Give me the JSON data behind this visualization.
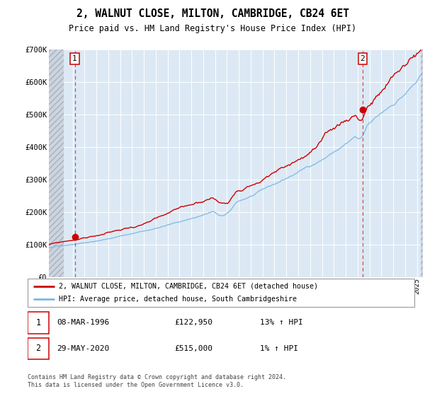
{
  "title": "2, WALNUT CLOSE, MILTON, CAMBRIDGE, CB24 6ET",
  "subtitle": "Price paid vs. HM Land Registry's House Price Index (HPI)",
  "legend_line1": "2, WALNUT CLOSE, MILTON, CAMBRIDGE, CB24 6ET (detached house)",
  "legend_line2": "HPI: Average price, detached house, South Cambridgeshire",
  "footer": "Contains HM Land Registry data © Crown copyright and database right 2024.\nThis data is licensed under the Open Government Licence v3.0.",
  "sale1_date": "08-MAR-1996",
  "sale1_price": "£122,950",
  "sale1_hpi": "13% ↑ HPI",
  "sale2_date": "29-MAY-2020",
  "sale2_price": "£515,000",
  "sale2_hpi": "1% ↑ HPI",
  "sale1_year": 1996.18,
  "sale1_value": 122950,
  "sale2_year": 2020.41,
  "sale2_value": 515000,
  "hpi_color": "#7db8e0",
  "price_color": "#cc0000",
  "dot_color": "#cc0000",
  "plot_bg": "#dce9f5",
  "xmin": 1994.0,
  "xmax": 2025.5,
  "ymin": 0,
  "ymax": 700000,
  "yticks": [
    0,
    100000,
    200000,
    300000,
    400000,
    500000,
    600000,
    700000
  ],
  "ytick_labels": [
    "£0",
    "£100K",
    "£200K",
    "£300K",
    "£400K",
    "£500K",
    "£600K",
    "£700K"
  ]
}
